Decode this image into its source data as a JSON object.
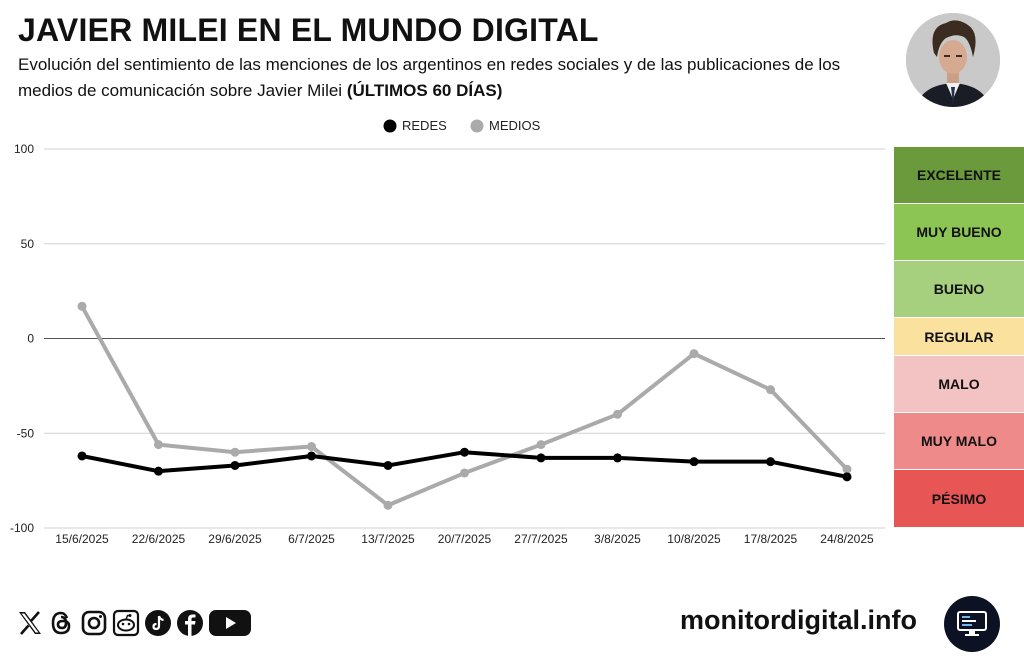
{
  "header": {
    "title": "JAVIER MILEI EN EL MUNDO DIGITAL",
    "subtitle": "Evolución del sentimiento de las menciones de los argentinos en redes sociales y de las publicaciones de los medios de comunicación sobre Javier Milei",
    "subtitle_bold": "(ÚLTIMOS 60 DÍAS)"
  },
  "chart_data": {
    "type": "line",
    "categories": [
      "15/6/2025",
      "22/6/2025",
      "29/6/2025",
      "6/7/2025",
      "13/7/2025",
      "20/7/2025",
      "27/7/2025",
      "3/8/2025",
      "10/8/2025",
      "17/8/2025",
      "24/8/2025"
    ],
    "series": [
      {
        "name": "REDES",
        "color": "#000000",
        "values": [
          -62,
          -70,
          -67,
          -62,
          -67,
          -60,
          -63,
          -63,
          -65,
          -65,
          -73
        ]
      },
      {
        "name": "MEDIOS",
        "color": "#aaaaaa",
        "values": [
          17,
          -56,
          -60,
          -57,
          -88,
          -71,
          -56,
          -40,
          -8,
          -27,
          -69
        ]
      }
    ],
    "ylim": [
      -100,
      100
    ],
    "yticks": [
      100,
      50,
      0,
      -50,
      -100
    ],
    "legend_position": "top-center",
    "grid": true
  },
  "scale": [
    {
      "label": "EXCELENTE",
      "color": "#6a9a3c"
    },
    {
      "label": "MUY BUENO",
      "color": "#8cc554"
    },
    {
      "label": "BUENO",
      "color": "#a6d07d"
    },
    {
      "label": "REGULAR",
      "color": "#fae29e"
    },
    {
      "label": "MALO",
      "color": "#f3c2c2"
    },
    {
      "label": "MUY MALO",
      "color": "#ef8a8a"
    },
    {
      "label": "PÉSIMO",
      "color": "#e85555"
    }
  ],
  "footer": {
    "site": "monitordigital.info",
    "socials": [
      "x-icon",
      "threads-icon",
      "instagram-icon",
      "reddit-icon",
      "tiktok-icon",
      "facebook-icon",
      "youtube-icon"
    ]
  }
}
